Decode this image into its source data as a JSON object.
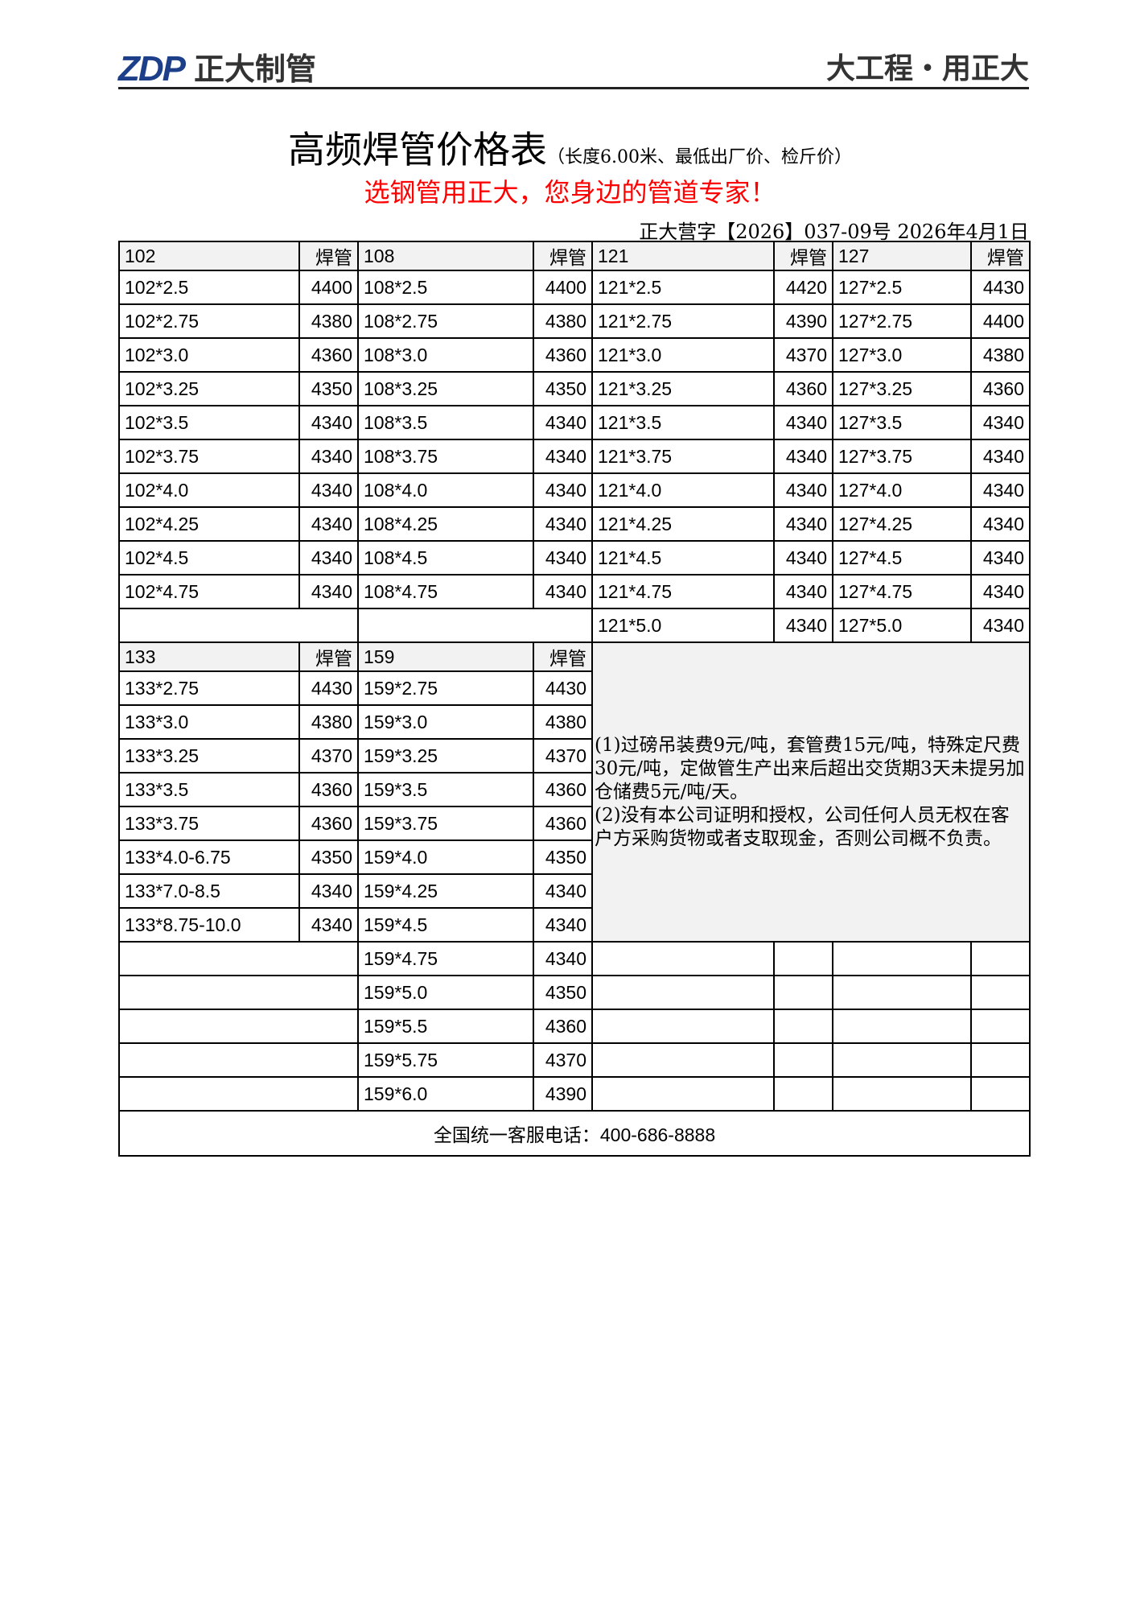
{
  "header": {
    "logo_mark": "ZDP",
    "logo_text": "正大制管",
    "slogan": "大工程・用正大",
    "brand_color": "#1d3f8a"
  },
  "title": {
    "main": "高频焊管价格表",
    "sub": "（长度6.00米、最低出厂价、检斤价）"
  },
  "tagline": "选钢管用正大，您身边的管道专家！",
  "tagline_color": "#ff0000",
  "doc_number": "正大营字【2026】037-09号  2026年4月1日",
  "price_header": "焊管",
  "section1": {
    "groups": [
      "102",
      "108",
      "121",
      "127"
    ],
    "rows": [
      [
        [
          "102*2.5",
          "4400"
        ],
        [
          "108*2.5",
          "4400"
        ],
        [
          "121*2.5",
          "4420"
        ],
        [
          "127*2.5",
          "4430"
        ]
      ],
      [
        [
          "102*2.75",
          "4380"
        ],
        [
          "108*2.75",
          "4380"
        ],
        [
          "121*2.75",
          "4390"
        ],
        [
          "127*2.75",
          "4400"
        ]
      ],
      [
        [
          "102*3.0",
          "4360"
        ],
        [
          "108*3.0",
          "4360"
        ],
        [
          "121*3.0",
          "4370"
        ],
        [
          "127*3.0",
          "4380"
        ]
      ],
      [
        [
          "102*3.25",
          "4350"
        ],
        [
          "108*3.25",
          "4350"
        ],
        [
          "121*3.25",
          "4360"
        ],
        [
          "127*3.25",
          "4360"
        ]
      ],
      [
        [
          "102*3.5",
          "4340"
        ],
        [
          "108*3.5",
          "4340"
        ],
        [
          "121*3.5",
          "4340"
        ],
        [
          "127*3.5",
          "4340"
        ]
      ],
      [
        [
          "102*3.75",
          "4340"
        ],
        [
          "108*3.75",
          "4340"
        ],
        [
          "121*3.75",
          "4340"
        ],
        [
          "127*3.75",
          "4340"
        ]
      ],
      [
        [
          "102*4.0",
          "4340"
        ],
        [
          "108*4.0",
          "4340"
        ],
        [
          "121*4.0",
          "4340"
        ],
        [
          "127*4.0",
          "4340"
        ]
      ],
      [
        [
          "102*4.25",
          "4340"
        ],
        [
          "108*4.25",
          "4340"
        ],
        [
          "121*4.25",
          "4340"
        ],
        [
          "127*4.25",
          "4340"
        ]
      ],
      [
        [
          "102*4.5",
          "4340"
        ],
        [
          "108*4.5",
          "4340"
        ],
        [
          "121*4.5",
          "4340"
        ],
        [
          "127*4.5",
          "4340"
        ]
      ],
      [
        [
          "102*4.75",
          "4340"
        ],
        [
          "108*4.75",
          "4340"
        ],
        [
          "121*4.75",
          "4340"
        ],
        [
          "127*4.75",
          "4340"
        ]
      ],
      [
        null,
        null,
        [
          "121*5.0",
          "4340"
        ],
        [
          "127*5.0",
          "4340"
        ]
      ]
    ]
  },
  "section2": {
    "groups": [
      "133",
      "159"
    ],
    "rows": [
      [
        [
          "133*2.75",
          "4430"
        ],
        [
          "159*2.75",
          "4430"
        ]
      ],
      [
        [
          "133*3.0",
          "4380"
        ],
        [
          "159*3.0",
          "4380"
        ]
      ],
      [
        [
          "133*3.25",
          "4370"
        ],
        [
          "159*3.25",
          "4370"
        ]
      ],
      [
        [
          "133*3.5",
          "4360"
        ],
        [
          "159*3.5",
          "4360"
        ]
      ],
      [
        [
          "133*3.75",
          "4360"
        ],
        [
          "159*3.75",
          "4360"
        ]
      ],
      [
        [
          "133*4.0-6.75",
          "4350"
        ],
        [
          "159*4.0",
          "4350"
        ]
      ],
      [
        [
          "133*7.0-8.5",
          "4340"
        ],
        [
          "159*4.25",
          "4340"
        ]
      ],
      [
        [
          "133*8.75-10.0",
          "4340"
        ],
        [
          "159*4.5",
          "4340"
        ]
      ],
      [
        null,
        [
          "159*4.75",
          "4340"
        ]
      ],
      [
        null,
        [
          "159*5.0",
          "4350"
        ]
      ],
      [
        null,
        [
          "159*5.5",
          "4360"
        ]
      ],
      [
        null,
        [
          "159*5.75",
          "4370"
        ]
      ],
      [
        null,
        [
          "159*6.0",
          "4390"
        ]
      ]
    ]
  },
  "notes": [
    "(1)过磅吊装费9元/吨，套管费15元/吨，特殊定尺费30元/吨，定做管生产出来后超出交货期3天未提另加仓储费5元/吨/天。",
    "(2)没有本公司证明和授权，公司任何人员无权在客户方采购货物或者支取现金，否则公司概不负责。"
  ],
  "footer": "全国统一客服电话：400-686-8888"
}
